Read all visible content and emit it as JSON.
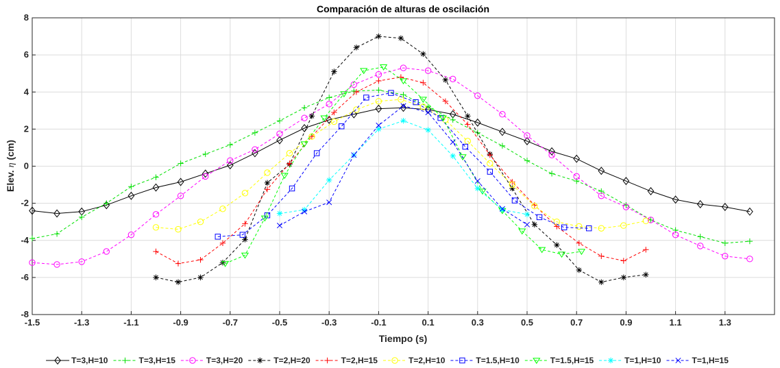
{
  "chart_data": {
    "type": "line",
    "title": "Comparación de alturas de oscilación",
    "xlabel": "Tiempo (s)",
    "ylabel_prefix": "Elev. ",
    "ylabel_symbol": "η",
    "ylabel_suffix": " (cm)",
    "xlim": [
      -1.5,
      1.5
    ],
    "ylim": [
      -8,
      8
    ],
    "x_ticks": [
      -1.5,
      -1.3,
      -1.1,
      -0.9,
      -0.7,
      -0.5,
      -0.3,
      -0.1,
      0.1,
      0.3,
      0.5,
      0.7,
      0.9,
      1.1,
      1.3
    ],
    "x_tick_labels": [
      "-1.5",
      "-1.3",
      "-1.1",
      "-0.9",
      "-0.7",
      "-0.5",
      "-0.3",
      "-0.1",
      "0.1",
      "0.3",
      "0.5",
      "0.7",
      "0.9",
      "1.1",
      "1.3"
    ],
    "y_ticks": [
      -8,
      -6,
      -4,
      -2,
      0,
      2,
      4,
      6,
      8
    ],
    "y_tick_labels": [
      "-8",
      "-6",
      "-4",
      "-2",
      "0",
      "2",
      "4",
      "6",
      "8"
    ],
    "grid": true,
    "legend_position": "bottom",
    "series": [
      {
        "name": "T=3,H=10",
        "color": "#000000",
        "marker": "diamond",
        "dash": "solid",
        "x": [
          -1.5,
          -1.4,
          -1.3,
          -1.2,
          -1.1,
          -1.0,
          -0.9,
          -0.8,
          -0.7,
          -0.6,
          -0.5,
          -0.4,
          -0.3,
          -0.2,
          -0.1,
          0.0,
          0.1,
          0.2,
          0.3,
          0.4,
          0.5,
          0.6,
          0.7,
          0.8,
          0.9,
          1.0,
          1.1,
          1.2,
          1.3,
          1.4
        ],
        "y": [
          -2.4,
          -2.55,
          -2.45,
          -2.1,
          -1.6,
          -1.15,
          -0.85,
          -0.4,
          0.05,
          0.7,
          1.4,
          2.05,
          2.5,
          2.8,
          3.1,
          3.15,
          3.05,
          2.8,
          2.35,
          1.85,
          1.35,
          0.8,
          0.4,
          -0.25,
          -0.8,
          -1.35,
          -1.8,
          -2.05,
          -2.2,
          -2.45
        ]
      },
      {
        "name": "T=3,H=15",
        "color": "#00e000",
        "marker": "plus",
        "dash": "dashed",
        "x": [
          -1.5,
          -1.4,
          -1.3,
          -1.2,
          -1.1,
          -1.0,
          -0.9,
          -0.8,
          -0.7,
          -0.6,
          -0.5,
          -0.4,
          -0.3,
          -0.2,
          -0.1,
          0.0,
          0.1,
          0.2,
          0.3,
          0.4,
          0.5,
          0.6,
          0.7,
          0.8,
          0.9,
          1.0,
          1.1,
          1.2,
          1.3,
          1.4
        ],
        "y": [
          -3.9,
          -3.65,
          -2.75,
          -2.0,
          -1.1,
          -0.6,
          0.15,
          0.65,
          1.15,
          1.8,
          2.45,
          3.15,
          3.7,
          4.05,
          4.1,
          3.85,
          3.2,
          2.5,
          1.8,
          1.1,
          0.3,
          -0.4,
          -0.8,
          -1.35,
          -2.1,
          -2.9,
          -3.45,
          -3.8,
          -4.15,
          -4.05
        ]
      },
      {
        "name": "T=3,H=20",
        "color": "#ff00ff",
        "marker": "circle",
        "dash": "dashed",
        "x": [
          -1.5,
          -1.4,
          -1.3,
          -1.2,
          -1.1,
          -1.0,
          -0.9,
          -0.8,
          -0.7,
          -0.6,
          -0.5,
          -0.4,
          -0.3,
          -0.2,
          -0.1,
          0.0,
          0.1,
          0.2,
          0.3,
          0.4,
          0.5,
          0.6,
          0.7,
          0.8,
          0.9,
          1.0,
          1.1,
          1.2,
          1.3,
          1.4
        ],
        "y": [
          -5.2,
          -5.3,
          -5.15,
          -4.6,
          -3.7,
          -2.6,
          -1.6,
          -0.55,
          0.3,
          0.9,
          1.75,
          2.6,
          3.35,
          4.4,
          4.95,
          5.3,
          5.15,
          4.7,
          3.8,
          2.8,
          1.65,
          0.6,
          -0.55,
          -1.6,
          -2.2,
          -2.9,
          -3.7,
          -4.3,
          -4.85,
          -5.0
        ]
      },
      {
        "name": "T=2,H=20",
        "color": "#000000",
        "marker": "asterisk",
        "dash": "dashed",
        "x": [
          -1.0,
          -0.91,
          -0.82,
          -0.73,
          -0.64,
          -0.55,
          -0.46,
          -0.37,
          -0.28,
          -0.19,
          -0.1,
          -0.01,
          0.08,
          0.17,
          0.26,
          0.35,
          0.44,
          0.53,
          0.62,
          0.71,
          0.8,
          0.89,
          0.98
        ],
        "y": [
          -6.0,
          -6.25,
          -6.0,
          -5.2,
          -3.95,
          -0.9,
          0.1,
          2.7,
          5.1,
          6.4,
          7.0,
          6.9,
          6.05,
          4.65,
          2.7,
          0.65,
          -1.2,
          -3.15,
          -4.25,
          -5.6,
          -6.25,
          -6.0,
          -5.85
        ]
      },
      {
        "name": "T=2,H=15",
        "color": "#ff0000",
        "marker": "plus",
        "dash": "dashed",
        "x": [
          -1.0,
          -0.91,
          -0.82,
          -0.73,
          -0.64,
          -0.55,
          -0.46,
          -0.37,
          -0.28,
          -0.19,
          -0.1,
          -0.01,
          0.08,
          0.17,
          0.26,
          0.35,
          0.44,
          0.53,
          0.62,
          0.71,
          0.8,
          0.89,
          0.98
        ],
        "y": [
          -4.6,
          -5.25,
          -5.05,
          -4.15,
          -3.1,
          -1.25,
          0.15,
          1.6,
          2.9,
          4.0,
          4.6,
          4.8,
          4.5,
          3.5,
          2.25,
          0.6,
          -0.85,
          -2.1,
          -3.25,
          -4.15,
          -4.85,
          -5.1,
          -4.5
        ]
      },
      {
        "name": "T=2,H=10",
        "color": "#ffff00",
        "marker": "circle",
        "dash": "dashed",
        "x": [
          -1.0,
          -0.91,
          -0.82,
          -0.73,
          -0.64,
          -0.55,
          -0.46,
          -0.37,
          -0.28,
          -0.19,
          -0.1,
          -0.01,
          0.08,
          0.17,
          0.26,
          0.35,
          0.44,
          0.53,
          0.62,
          0.71,
          0.8,
          0.89,
          0.98
        ],
        "y": [
          -3.3,
          -3.4,
          -3.0,
          -2.3,
          -1.45,
          -0.35,
          0.7,
          1.6,
          2.4,
          3.05,
          3.5,
          3.6,
          3.2,
          2.5,
          1.35,
          0.15,
          -1.0,
          -2.15,
          -3.0,
          -3.25,
          -3.35,
          -3.2,
          -2.95
        ]
      },
      {
        "name": "T=1.5,H=10",
        "color": "#0000ff",
        "marker": "square",
        "dash": "dashed",
        "x": [
          -0.75,
          -0.65,
          -0.55,
          -0.45,
          -0.35,
          -0.25,
          -0.15,
          -0.05,
          0.05,
          0.15,
          0.25,
          0.35,
          0.45,
          0.55,
          0.65,
          0.75
        ],
        "y": [
          -3.8,
          -3.7,
          -2.65,
          -1.2,
          0.7,
          2.15,
          3.7,
          3.95,
          3.45,
          2.6,
          1.05,
          -0.3,
          -1.85,
          -2.75,
          -3.3,
          -3.35
        ]
      },
      {
        "name": "T=1.5,H=15",
        "color": "#00ff00",
        "marker": "triangle-down",
        "dash": "dashed",
        "x": [
          -0.72,
          -0.64,
          -0.56,
          -0.48,
          -0.4,
          -0.32,
          -0.24,
          -0.16,
          -0.08,
          0.0,
          0.08,
          0.16,
          0.24,
          0.32,
          0.4,
          0.48,
          0.56,
          0.64,
          0.72
        ],
        "y": [
          -5.25,
          -4.8,
          -2.8,
          -0.5,
          1.2,
          2.6,
          3.9,
          5.15,
          5.35,
          4.6,
          3.6,
          2.6,
          0.5,
          -1.35,
          -2.4,
          -3.5,
          -4.5,
          -4.75,
          -4.6
        ]
      },
      {
        "name": "T=1,H=10",
        "color": "#00ffff",
        "marker": "asterisk",
        "dash": "dashed",
        "x": [
          -0.5,
          -0.4,
          -0.3,
          -0.2,
          -0.1,
          0.0,
          0.1,
          0.2,
          0.3,
          0.4,
          0.5
        ],
        "y": [
          -2.55,
          -2.35,
          -0.75,
          0.6,
          2.0,
          2.45,
          1.95,
          0.55,
          -1.2,
          -2.35,
          -2.6
        ]
      },
      {
        "name": "T=1,H=15",
        "color": "#0000ff",
        "marker": "x",
        "dash": "dashed",
        "x": [
          -0.5,
          -0.4,
          -0.3,
          -0.2,
          -0.1,
          0.0,
          0.1,
          0.2,
          0.3,
          0.4,
          0.5
        ],
        "y": [
          -3.2,
          -2.45,
          -1.95,
          0.6,
          2.2,
          3.25,
          2.9,
          1.3,
          -0.8,
          -2.3,
          -3.15
        ]
      }
    ]
  }
}
